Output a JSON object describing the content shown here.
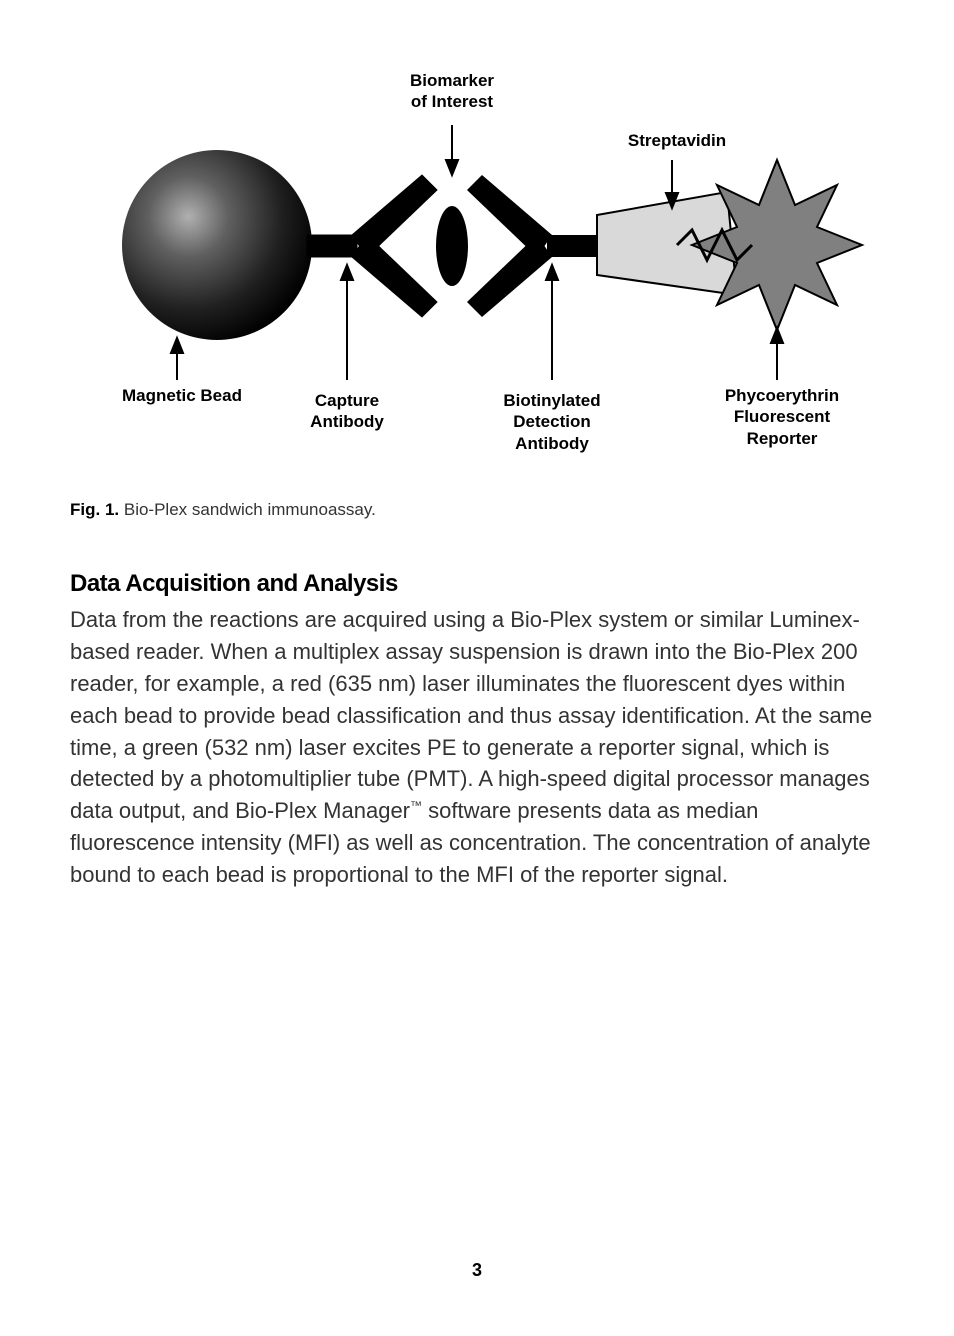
{
  "diagram": {
    "labels": {
      "biomarker": "Biomarker\nof Interest",
      "streptavidin": "Streptavidin",
      "magnetic_bead": "Magnetic Bead",
      "capture_antibody": "Capture\nAntibody",
      "biotinylated": "Biotinylated\nDetection\nAntibody",
      "phycoerythrin": "Phycoerythrin\nFluorescent\nReporter"
    },
    "colors": {
      "bead_dark": "#1a1a1a",
      "bead_highlight": "#888888",
      "antibody_fill": "#000000",
      "biomarker_fill": "#000000",
      "streptavidin_fill": "#d9d9d9",
      "streptavidin_stroke": "#000000",
      "star_fill": "#808080",
      "star_stroke": "#000000",
      "arrow_stroke": "#000000",
      "label_color": "#000000"
    },
    "label_fontsize": 17,
    "label_fontweight": 600
  },
  "caption": {
    "prefix": "Fig. 1.",
    "text": "Bio-Plex sandwich immunoassay."
  },
  "section": {
    "heading": "Data Acquisition and Analysis",
    "body": "Data from the reactions are acquired using a Bio-Plex system or similar Luminex-based reader. When a multiplex assay suspension is drawn into the Bio-Plex 200 reader, for example, a red (635 nm) laser illuminates the fluorescent dyes within each bead to provide bead classification and thus assay identification. At the same time, a green (532 nm) laser excites PE to generate a reporter signal, which is detected by a photomultiplier tube (PMT). A high-speed digital processor manages data output, and Bio-Plex Manager™ software presents data as median fluorescence intensity (MFI) as well as concentration. The concentration of analyte bound to each bead is proportional to the MFI of the reporter signal.",
    "heading_fontsize": 24,
    "body_fontsize": 22
  },
  "page_number": "3"
}
